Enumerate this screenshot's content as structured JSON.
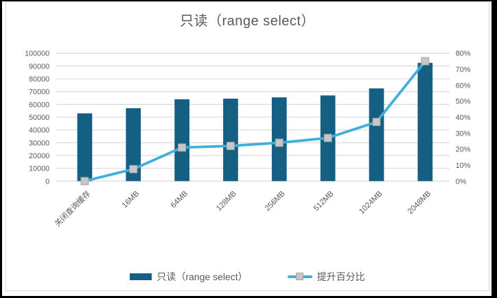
{
  "frame": {
    "outer_color": "#000000",
    "panel_color": "#FFFFFF",
    "border_color": "#D9D9D9"
  },
  "chart_data": {
    "type": "combo-bar-line",
    "title": "只读（range select）",
    "title_color": "#595959",
    "grid": true,
    "grid_color": "#D9D9D9",
    "text_color": "#595959",
    "legend_position": "bottom",
    "categories": [
      "关闭查询缓存",
      "16MB",
      "64MB",
      "128MB",
      "256MB",
      "512MB",
      "1024MB",
      "2048MB"
    ],
    "series": [
      {
        "name": "只读（range select）",
        "type": "bar",
        "axis": "left",
        "color": "#156082",
        "values": [
          53000,
          57000,
          64000,
          64500,
          65500,
          67000,
          72500,
          92500
        ]
      },
      {
        "name": "提升百分比",
        "type": "line",
        "axis": "right",
        "color": "#41AEDB",
        "marker": "square",
        "marker_color": "#C6C6C6",
        "marker_border": "#A6A6A6",
        "values": [
          0,
          7.5,
          21,
          22,
          24,
          27,
          37,
          75
        ]
      }
    ],
    "left_axis": {
      "min": 0,
      "max": 100000,
      "step": 10000,
      "label_format": "plain"
    },
    "right_axis": {
      "min": 0,
      "max": 80,
      "step": 10,
      "label_format": "percent"
    }
  }
}
